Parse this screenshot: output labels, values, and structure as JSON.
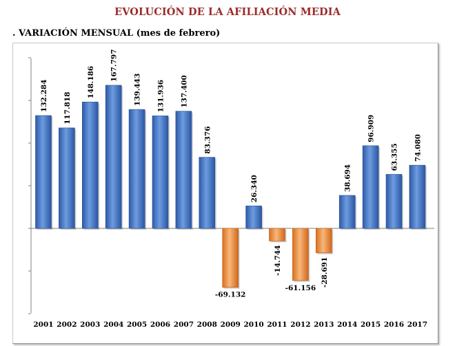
{
  "page": {
    "title": "EVOLUCIÓN DE LA AFILIACIÓN MEDIA",
    "subtitle": ". VARIACIÓN MENSUAL (mes de febrero)"
  },
  "colors": {
    "title": "#9c2b2b",
    "positive_bar": "#3f75c9",
    "negative_bar": "#ec8a38"
  },
  "chart_data": {
    "type": "bar",
    "title": "",
    "xlabel": "",
    "ylabel": "",
    "ylim": [
      -200000,
      200000
    ],
    "grid": false,
    "categories": [
      "2001",
      "2002",
      "2003",
      "2004",
      "2005",
      "2006",
      "2007",
      "2008",
      "2009",
      "2010",
      "2011",
      "2012",
      "2013",
      "2014",
      "2015",
      "2016",
      "2017"
    ],
    "values": [
      132284,
      117818,
      148186,
      167797,
      139443,
      131936,
      137400,
      83376,
      -69132,
      26340,
      -14744,
      -61156,
      -28691,
      38694,
      96909,
      63355,
      74080
    ],
    "value_labels": [
      "132.284",
      "117.818",
      "148.186",
      "167.797",
      "139.443",
      "131.936",
      "137.400",
      "83.376",
      "-69.132",
      "26.340",
      "-14.744",
      "-61.156",
      "-28.691",
      "38.694",
      "96.909",
      "63.355",
      "74.080"
    ]
  }
}
